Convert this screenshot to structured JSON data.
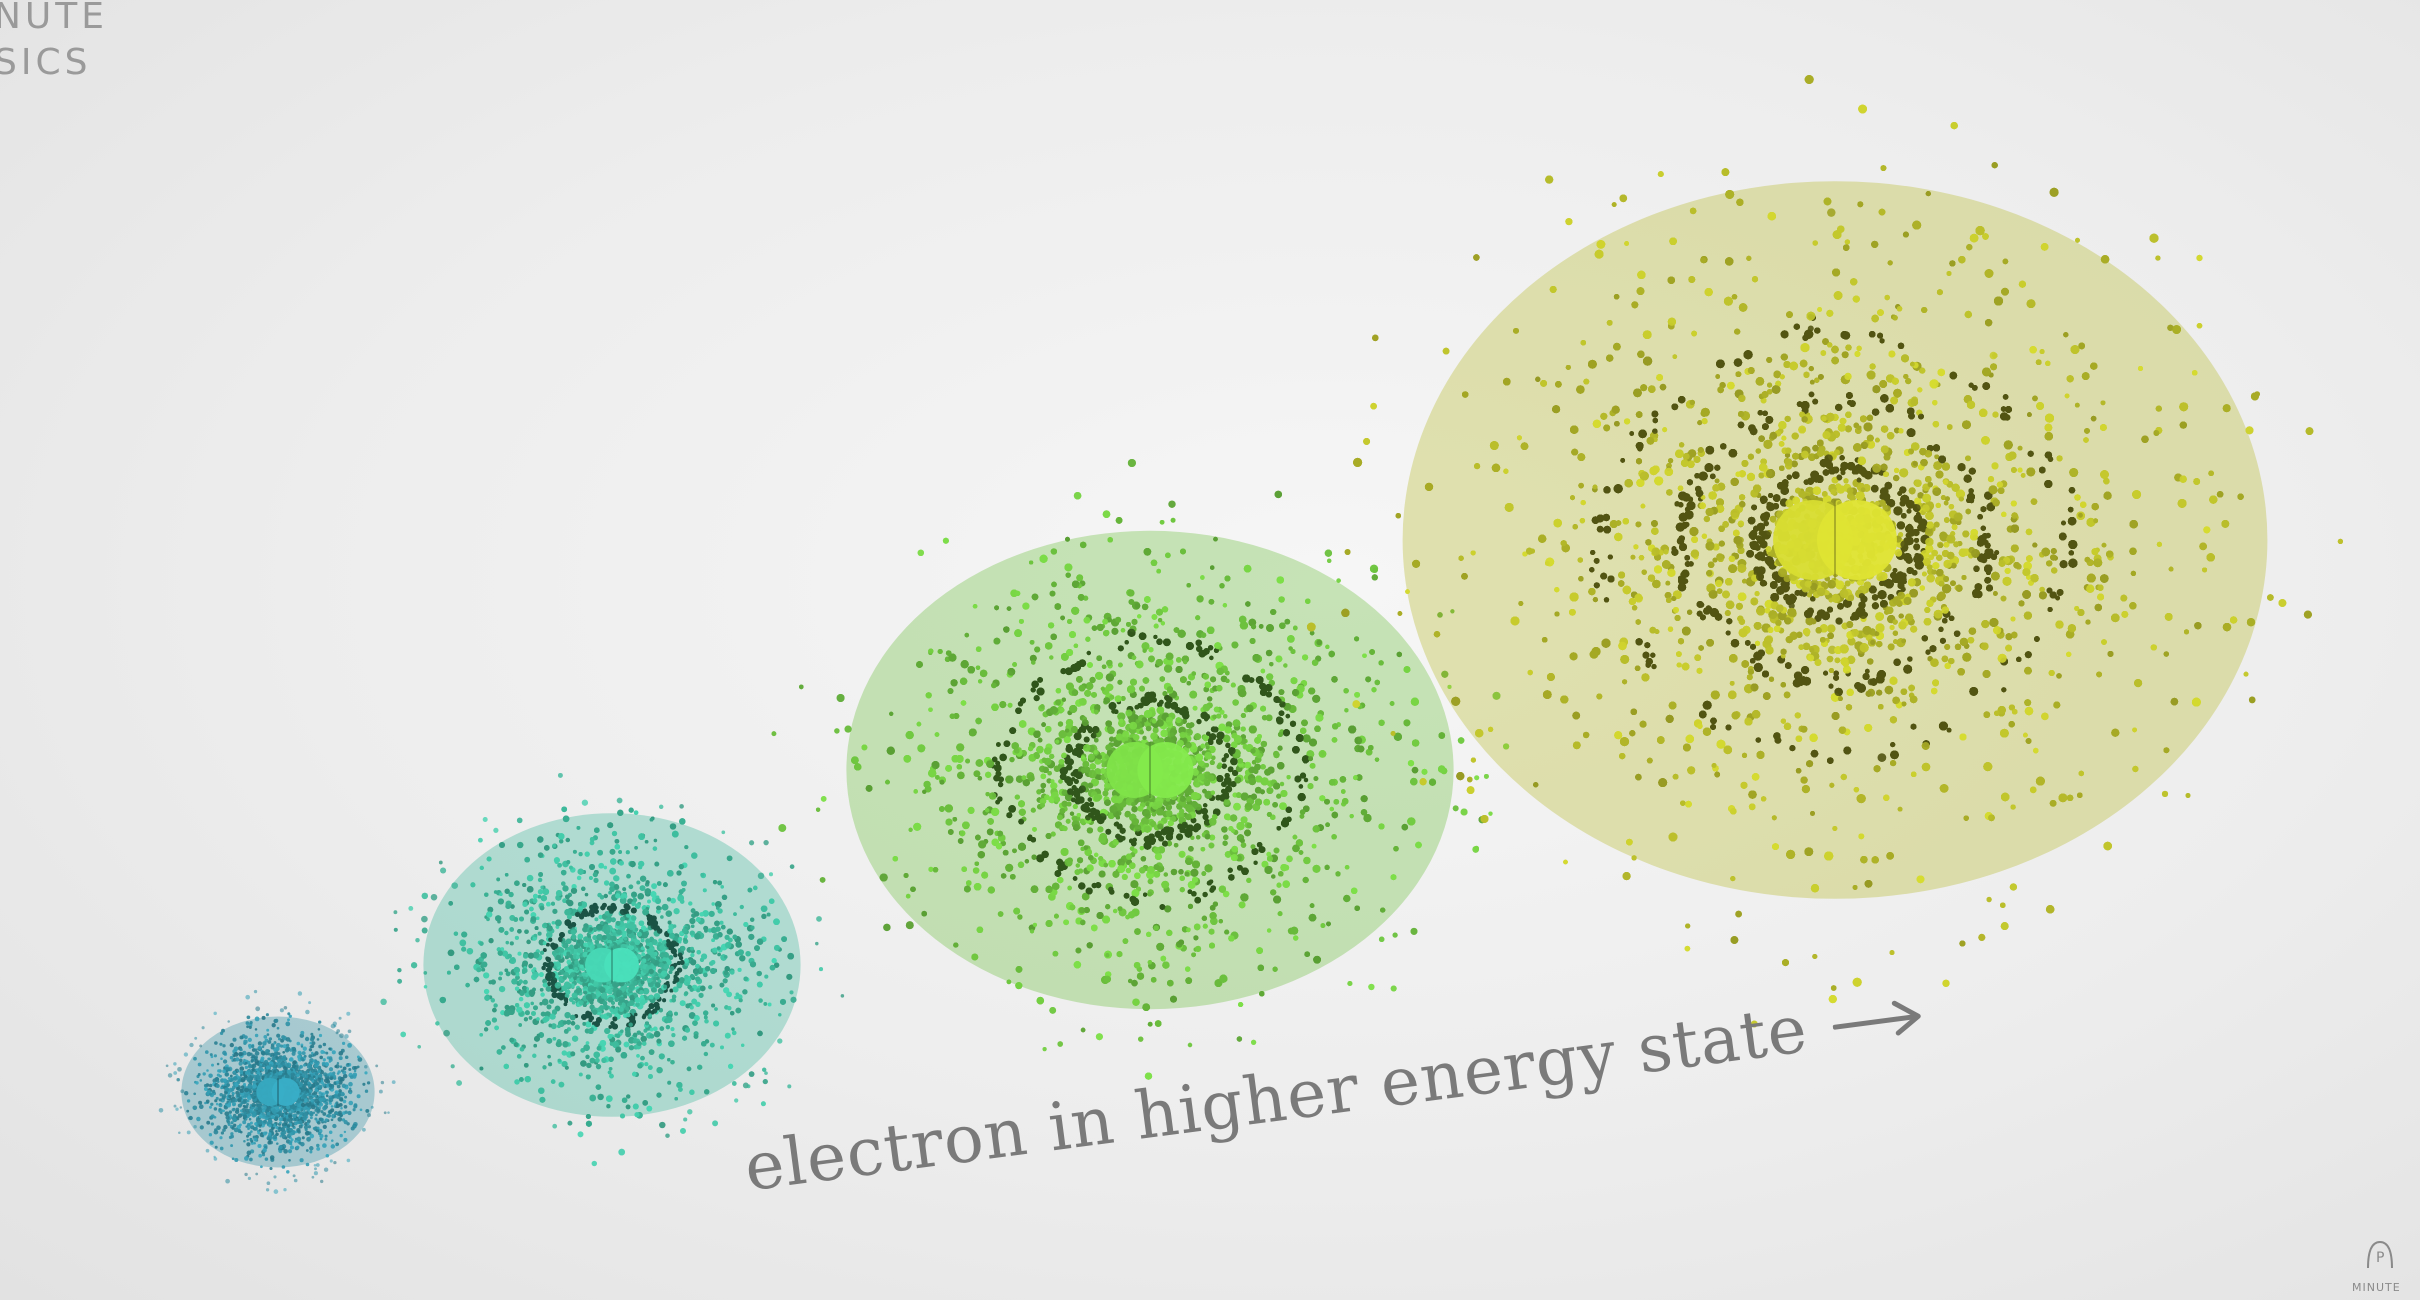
{
  "caption": {
    "text": "electron in higher energy state",
    "arrow_icon": "right-arrow-icon",
    "color": "#7a7a7a"
  },
  "corner_logo": {
    "line1": "NUTE",
    "line2": "SICS"
  },
  "watermark": {
    "text": "MINUTE"
  },
  "orbitals": [
    {
      "name": "orbital-1s",
      "color": "#2f8fa3"
    },
    {
      "name": "orbital-2s",
      "color": "#3db89a"
    },
    {
      "name": "orbital-3s",
      "color": "#6cc03e"
    },
    {
      "name": "orbital-4s",
      "color": "#b7bb2a"
    }
  ]
}
